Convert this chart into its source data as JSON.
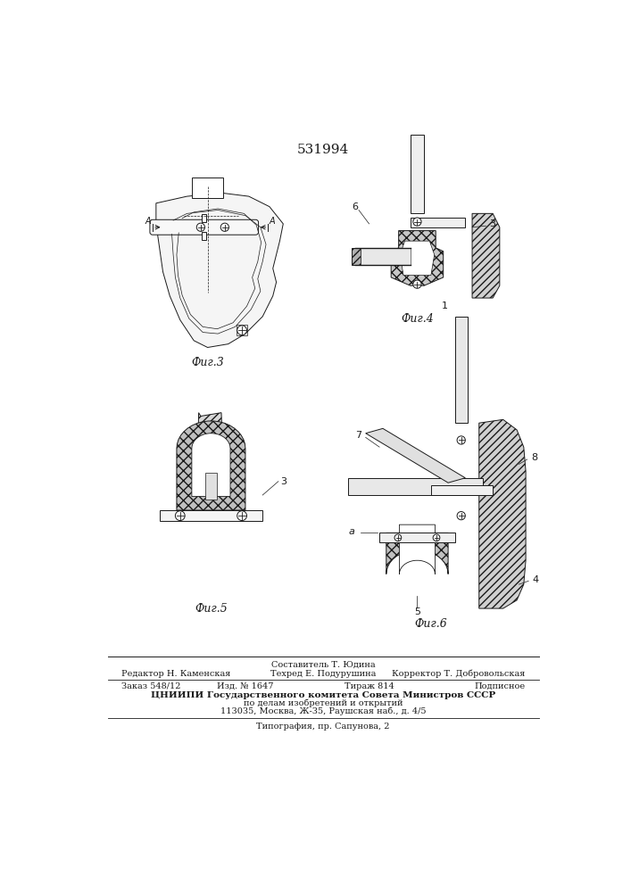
{
  "patent_number": "531994",
  "background_color": "#ffffff",
  "page_width": 7.07,
  "page_height": 10.0,
  "fig3_label": "Фиг.3",
  "fig4_label": "Фиг.4",
  "fig5_label": "Фиг.5",
  "fig6_label": "Фиг.6",
  "footer_line1_center": "Составитель Т. Юдина",
  "footer_line2_left": "Редактор Н. Каменская",
  "footer_line2_center": "Техред Е. Подурушина",
  "footer_line2_right": "Корректор Т. Добровольская",
  "footer_line3_left": "Заказ 548/12",
  "footer_line3_cl": "Изд. № 1647",
  "footer_line3_cr": "Тираж 814",
  "footer_line3_right": "Подписное",
  "footer_line4": "ЦНИИПИ Государственного комитета Совета Министров СССР",
  "footer_line5": "по делам изобретений и открытий",
  "footer_line6": "113035, Москва, Ж-35, Раушская наб., д. 4/5",
  "footer_line7": "Типография, пр. Сапунова, 2",
  "draw_color": "#1a1a1a"
}
